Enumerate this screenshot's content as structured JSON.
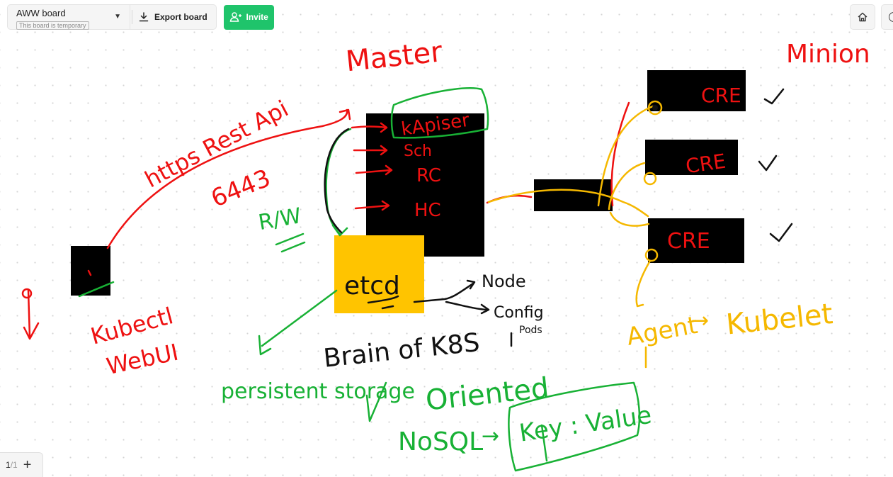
{
  "toolbar": {
    "board_name": "AWW board",
    "temporary_badge": "This board is temporary",
    "export_label": "Export board",
    "invite_label": "Invite"
  },
  "pagination": {
    "current": "1",
    "total": "/1"
  },
  "colors": {
    "red_ink": "#ee1111",
    "green_ink": "#18b135",
    "yellow_ink": "#f5b800",
    "black_ink": "#111111",
    "etcd_fill": "#ffc400",
    "invite_button": "#1fc46b"
  },
  "icons": {
    "export": "download-icon",
    "invite": "add-user-icon",
    "home": "home-icon",
    "dropdown": "chevron-down-icon",
    "add_page": "plus-icon"
  },
  "canvas": {
    "master_title": "Master",
    "minion_title": "Minion",
    "https_label": "https Rest Api",
    "port_label": "6443",
    "master_components": [
      "kApiser",
      "Sch",
      "RC",
      "HC"
    ],
    "rw_label": "R/W",
    "etcd_label": "etcd",
    "kubectl_label": "Kubectl",
    "webui_label": "WebUI",
    "etcd_stores": [
      "Node",
      "Config",
      "Pods"
    ],
    "brain_label": "Brain of K8S",
    "persistent_label": "persistent storage",
    "oriented_label": "Oriented",
    "nosql_label": "NoSQL",
    "keyvalue_label": "Key : Value",
    "minion_nodes": [
      "CRE",
      "CRE",
      "CRE"
    ],
    "check_marks": [
      "✓",
      "✓",
      "✓"
    ],
    "agent_label": "Agent",
    "arrow_label": "→",
    "kubelet_label": "Kubelet"
  }
}
